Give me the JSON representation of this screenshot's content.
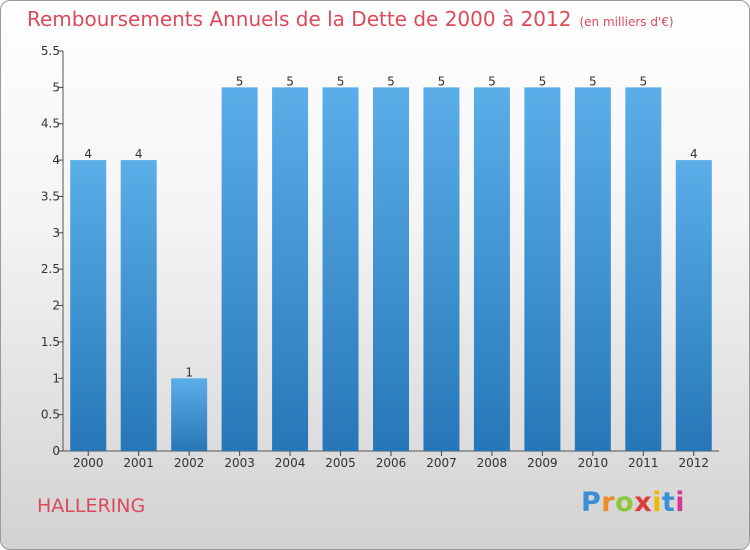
{
  "header": {
    "title": "Remboursements Annuels de la Dette de 2000 à 2012",
    "unit": "(en milliers d'€)"
  },
  "footer": {
    "city": "HALLERING",
    "brand": "Proxiti"
  },
  "colors": {
    "title": "#dc4a5a",
    "bar_top": "#5baee8",
    "bar_bottom": "#2777b8",
    "axis": "#555555",
    "grid_tick": "#444444"
  },
  "chart_data": {
    "type": "bar",
    "title": "Remboursements Annuels de la Dette de 2000 à 2012",
    "xlabel": "",
    "ylabel": "",
    "categories": [
      "2000",
      "2001",
      "2002",
      "2003",
      "2004",
      "2005",
      "2006",
      "2007",
      "2008",
      "2009",
      "2010",
      "2011",
      "2012"
    ],
    "values": [
      4,
      4,
      1,
      5,
      5,
      5,
      5,
      5,
      5,
      5,
      5,
      5,
      4
    ],
    "value_labels": [
      "4",
      "4",
      "1",
      "5",
      "5",
      "5",
      "5",
      "5",
      "5",
      "5",
      "5",
      "5",
      "4"
    ],
    "ylim": [
      0,
      5.5
    ],
    "yticks": [
      "0",
      "0.5",
      "1",
      "1.5",
      "2",
      "2.5",
      "3",
      "3.5",
      "4",
      "4.5",
      "5",
      "5.5"
    ],
    "grid": false
  }
}
